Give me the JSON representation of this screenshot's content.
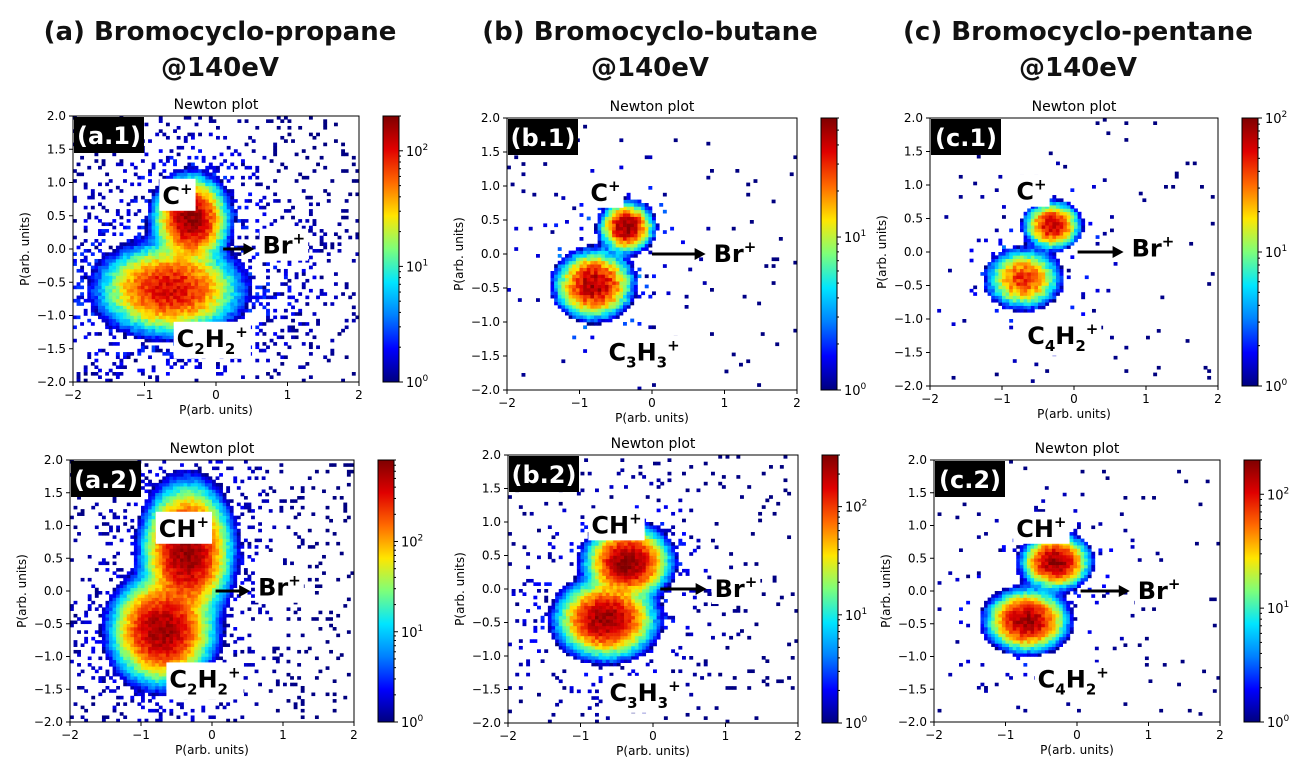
{
  "columns": [
    {
      "title": "(a) Bromocyclo-propane",
      "energy": "@140eV"
    },
    {
      "title": "(b) Bromocyclo-butane",
      "energy": "@140eV"
    },
    {
      "title": "(c) Bromocyclo-pentane",
      "energy": "@140eV"
    }
  ],
  "colors": {
    "colormap": [
      "#00007f",
      "#0000ff",
      "#0080ff",
      "#00e5ff",
      "#7dff7a",
      "#ffe600",
      "#ff6a00",
      "#e00000",
      "#7f0000"
    ],
    "panel_label_bg": "#000000",
    "panel_label_fg": "#ffffff",
    "arrow": "#000000"
  },
  "chart_data": [
    {
      "type": "heatmap",
      "id": "a.1",
      "panel_label": "(a.1)",
      "title": "Newton plot",
      "xlabel": "P(arb. units)",
      "ylabel": "P(arb. units)",
      "xlim": [
        -2,
        2
      ],
      "ylim": [
        -2,
        2
      ],
      "xticks": [
        "-2",
        "-1",
        "0",
        "1",
        "2"
      ],
      "yticks": [
        "-2.0",
        "-1.5",
        "-1.0",
        "-0.5",
        "0.0",
        "0.5",
        "1.0",
        "1.5",
        "2.0"
      ],
      "colorbar": {
        "scale": "log",
        "min": 1,
        "max": 200,
        "ticks": [
          {
            "mantissa": "10",
            "exp": "0",
            "value": 1
          },
          {
            "mantissa": "10",
            "exp": "1",
            "value": 10
          },
          {
            "mantissa": "10",
            "exp": "2",
            "value": 100
          }
        ]
      },
      "annotations": [
        {
          "base": "C",
          "sup": "+",
          "x": -0.75,
          "y": 0.8
        },
        {
          "base": "C",
          "sub": "2",
          "base2": "H",
          "sub2": "2",
          "sup": "+",
          "x": -0.55,
          "y": -1.35
        },
        {
          "base": "Br",
          "sup": "+",
          "x": 0.65,
          "y": 0.05,
          "arrow_from": [
            0.1,
            0.0
          ]
        }
      ],
      "clusters": [
        {
          "name": "C+",
          "center": [
            -0.35,
            0.45
          ],
          "spread": [
            0.28,
            0.35
          ],
          "peak": 180
        },
        {
          "name": "C2H2+",
          "center": [
            -0.65,
            -0.6
          ],
          "spread": [
            0.55,
            0.38
          ],
          "peak": 110
        }
      ],
      "background_density": 0.32
    },
    {
      "type": "heatmap",
      "id": "b.1",
      "panel_label": "(b.1)",
      "title": "Newton plot",
      "xlabel": "P(arb. units)",
      "ylabel": "P(arb. units)",
      "xlim": [
        -2,
        2
      ],
      "ylim": [
        -2,
        2
      ],
      "xticks": [
        "-2",
        "-1",
        "0",
        "1",
        "2"
      ],
      "yticks": [
        "-2.0",
        "-1.5",
        "-1.0",
        "-0.5",
        "0.0",
        "0.5",
        "1.0",
        "1.5",
        "2.0"
      ],
      "colorbar": {
        "scale": "log",
        "min": 1,
        "max": 60,
        "ticks": [
          {
            "mantissa": "10",
            "exp": "0",
            "value": 1
          },
          {
            "mantissa": "10",
            "exp": "1",
            "value": 10
          }
        ]
      },
      "annotations": [
        {
          "base": "C",
          "sup": "+",
          "x": -0.85,
          "y": 0.9
        },
        {
          "base": "C",
          "sub": "3",
          "base2": "H",
          "sub2": "3",
          "sup": "+",
          "x": -0.6,
          "y": -1.45
        },
        {
          "base": "Br",
          "sup": "+",
          "x": 0.85,
          "y": 0.0,
          "arrow_from": [
            0.0,
            0.0
          ]
        }
      ],
      "clusters": [
        {
          "name": "C+",
          "center": [
            -0.35,
            0.4
          ],
          "spread": [
            0.22,
            0.22
          ],
          "peak": 55
        },
        {
          "name": "C3H3+",
          "center": [
            -0.8,
            -0.45
          ],
          "spread": [
            0.32,
            0.3
          ],
          "peak": 50
        }
      ],
      "background_density": 0.06
    },
    {
      "type": "heatmap",
      "id": "c.1",
      "panel_label": "(c.1)",
      "title": "Newton plot",
      "xlabel": "P(arb. units)",
      "ylabel": "P(arb. units)",
      "xlim": [
        -2,
        2
      ],
      "ylim": [
        -2,
        2
      ],
      "xticks": [
        "-2",
        "-1",
        "0",
        "1",
        "2"
      ],
      "yticks": [
        "-2.0",
        "-1.5",
        "-1.0",
        "-0.5",
        "0.0",
        "0.5",
        "1.0",
        "1.5",
        "2.0"
      ],
      "colorbar": {
        "scale": "log",
        "min": 1,
        "max": 100,
        "ticks": [
          {
            "mantissa": "10",
            "exp": "0",
            "value": 1
          },
          {
            "mantissa": "10",
            "exp": "1",
            "value": 10
          },
          {
            "mantissa": "10",
            "exp": "2",
            "value": 100
          }
        ]
      },
      "annotations": [
        {
          "base": "C",
          "sup": "+",
          "x": -0.8,
          "y": 0.9
        },
        {
          "base": "C",
          "sub": "4",
          "base2": "H",
          "sub2": "2",
          "sup": "+",
          "x": -0.65,
          "y": -1.25
        },
        {
          "base": "Br",
          "sup": "+",
          "x": 0.8,
          "y": 0.05,
          "arrow_from": [
            0.05,
            0.0
          ]
        }
      ],
      "clusters": [
        {
          "name": "C+",
          "center": [
            -0.3,
            0.4
          ],
          "spread": [
            0.22,
            0.2
          ],
          "peak": 70
        },
        {
          "name": "C4H2+",
          "center": [
            -0.7,
            -0.4
          ],
          "spread": [
            0.3,
            0.26
          ],
          "peak": 45
        }
      ],
      "background_density": 0.05
    },
    {
      "type": "heatmap",
      "id": "a.2",
      "panel_label": "(a.2)",
      "title": "Newton plot",
      "xlabel": "P(arb. units)",
      "ylabel": "P(arb. units)",
      "xlim": [
        -2,
        2
      ],
      "ylim": [
        -2,
        2
      ],
      "xticks": [
        "-2",
        "-1",
        "0",
        "1",
        "2"
      ],
      "yticks": [
        "-2.0",
        "-1.5",
        "-1.0",
        "-0.5",
        "0.0",
        "0.5",
        "1.0",
        "1.5",
        "2.0"
      ],
      "colorbar": {
        "scale": "log",
        "min": 1,
        "max": 800,
        "ticks": [
          {
            "mantissa": "10",
            "exp": "0",
            "value": 1
          },
          {
            "mantissa": "10",
            "exp": "1",
            "value": 10
          },
          {
            "mantissa": "10",
            "exp": "2",
            "value": 100
          }
        ]
      },
      "annotations": [
        {
          "base": "CH",
          "sup": "+",
          "x": -0.75,
          "y": 0.95
        },
        {
          "base": "C",
          "sub": "2",
          "base2": "H",
          "sub2": "2",
          "sup": "+",
          "x": -0.6,
          "y": -1.35
        },
        {
          "base": "Br",
          "sup": "+",
          "x": 0.65,
          "y": 0.05,
          "arrow_from": [
            0.05,
            0.0
          ]
        }
      ],
      "clusters": [
        {
          "name": "CH+",
          "center": [
            -0.35,
            0.6
          ],
          "spread": [
            0.3,
            0.5
          ],
          "peak": 700
        },
        {
          "name": "C2H2+",
          "center": [
            -0.7,
            -0.6
          ],
          "spread": [
            0.35,
            0.4
          ],
          "peak": 650
        }
      ],
      "background_density": 0.28
    },
    {
      "type": "heatmap",
      "id": "b.2",
      "panel_label": "(b.2)",
      "title": "Newton plot",
      "xlabel": "P(arb. units)",
      "ylabel": "P(arb. units)",
      "xlim": [
        -2,
        2
      ],
      "ylim": [
        -2,
        2
      ],
      "xticks": [
        "-2",
        "-1",
        "0",
        "1",
        "2"
      ],
      "yticks": [
        "-2.0",
        "-1.5",
        "-1.0",
        "-0.5",
        "0.0",
        "0.5",
        "1.0",
        "1.5",
        "2.0"
      ],
      "colorbar": {
        "scale": "log",
        "min": 1,
        "max": 300,
        "ticks": [
          {
            "mantissa": "10",
            "exp": "0",
            "value": 1
          },
          {
            "mantissa": "10",
            "exp": "1",
            "value": 10
          },
          {
            "mantissa": "10",
            "exp": "2",
            "value": 100
          }
        ]
      },
      "annotations": [
        {
          "base": "CH",
          "sup": "+",
          "x": -0.85,
          "y": 0.95
        },
        {
          "base": "C",
          "sub": "3",
          "base2": "H",
          "sub2": "3",
          "sup": "+",
          "x": -0.6,
          "y": -1.55
        },
        {
          "base": "Br",
          "sup": "+",
          "x": 0.85,
          "y": 0.0,
          "arrow_from": [
            0.1,
            0.0
          ]
        }
      ],
      "clusters": [
        {
          "name": "CH+",
          "center": [
            -0.35,
            0.4
          ],
          "spread": [
            0.3,
            0.28
          ],
          "peak": 280
        },
        {
          "name": "C3H3+",
          "center": [
            -0.65,
            -0.45
          ],
          "spread": [
            0.35,
            0.3
          ],
          "peak": 260
        }
      ],
      "background_density": 0.16
    },
    {
      "type": "heatmap",
      "id": "c.2",
      "panel_label": "(c.2)",
      "title": "Newton plot",
      "xlabel": "P(arb. units)",
      "ylabel": "P(arb. units)",
      "xlim": [
        -2,
        2
      ],
      "ylim": [
        -2,
        2
      ],
      "xticks": [
        "-2",
        "-1",
        "0",
        "1",
        "2"
      ],
      "yticks": [
        "-2.0",
        "-1.5",
        "-1.0",
        "-0.5",
        "0.0",
        "0.5",
        "1.0",
        "1.5",
        "2.0"
      ],
      "colorbar": {
        "scale": "log",
        "min": 1,
        "max": 200,
        "ticks": [
          {
            "mantissa": "10",
            "exp": "0",
            "value": 1
          },
          {
            "mantissa": "10",
            "exp": "1",
            "value": 10
          },
          {
            "mantissa": "10",
            "exp": "2",
            "value": 100
          }
        ]
      },
      "annotations": [
        {
          "base": "CH",
          "sup": "+",
          "x": -0.85,
          "y": 0.95
        },
        {
          "base": "C",
          "sub": "4",
          "base2": "H",
          "sub2": "2",
          "sup": "+",
          "x": -0.55,
          "y": -1.35
        },
        {
          "base": "Br",
          "sup": "+",
          "x": 0.85,
          "y": 0.0,
          "arrow_from": [
            0.05,
            0.0
          ]
        }
      ],
      "clusters": [
        {
          "name": "CH+",
          "center": [
            -0.3,
            0.45
          ],
          "spread": [
            0.25,
            0.22
          ],
          "peak": 180
        },
        {
          "name": "C4H2+",
          "center": [
            -0.7,
            -0.45
          ],
          "spread": [
            0.3,
            0.25
          ],
          "peak": 170
        }
      ],
      "background_density": 0.08
    }
  ]
}
